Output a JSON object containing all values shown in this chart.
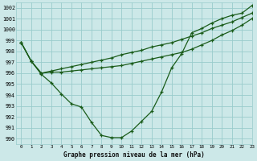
{
  "title": "Graphe pression niveau de la mer (hPa)",
  "bg_color": "#cce8e8",
  "grid_color": "#99cccc",
  "line_color": "#1a5c1a",
  "xlim": [
    -0.5,
    23
  ],
  "ylim": [
    989.5,
    1002.5
  ],
  "yticks": [
    990,
    991,
    992,
    993,
    994,
    995,
    996,
    997,
    998,
    999,
    1000,
    1001,
    1002
  ],
  "xticks": [
    0,
    1,
    2,
    3,
    4,
    5,
    6,
    7,
    8,
    9,
    10,
    11,
    12,
    13,
    14,
    15,
    16,
    17,
    18,
    19,
    20,
    21,
    22,
    23
  ],
  "curve1": [
    998.8,
    997.1,
    995.9,
    995.1,
    994.1,
    993.2,
    992.9,
    991.5,
    990.3,
    990.1,
    990.1,
    990.7,
    991.6,
    992.5,
    994.3,
    996.5,
    997.8,
    999.7,
    1000.1,
    1000.6,
    1001.0,
    1001.3,
    1001.5,
    1002.2
  ],
  "curve2": [
    998.8,
    997.1,
    996.0,
    996.1,
    996.1,
    996.2,
    996.3,
    996.4,
    996.5,
    996.6,
    996.7,
    996.9,
    997.1,
    997.3,
    997.5,
    997.7,
    997.9,
    998.2,
    998.6,
    999.0,
    999.5,
    999.9,
    1000.4,
    1001.0
  ],
  "curve3": [
    998.8,
    997.1,
    996.0,
    996.2,
    996.4,
    996.6,
    996.8,
    997.0,
    997.2,
    997.4,
    997.7,
    997.9,
    998.1,
    998.4,
    998.6,
    998.8,
    999.1,
    999.4,
    999.7,
    1000.1,
    1000.4,
    1000.7,
    1001.1,
    1001.5
  ]
}
